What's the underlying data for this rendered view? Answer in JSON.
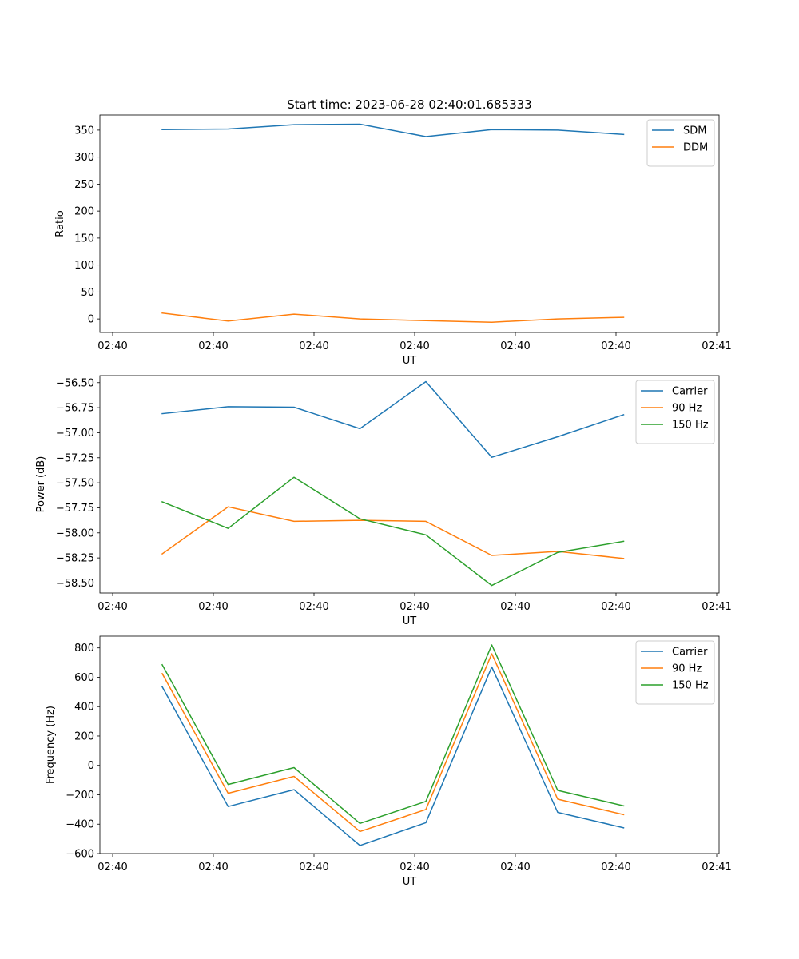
{
  "figure_title": "Start time: 2023-06-28 02:40:01.685333",
  "chart_data": [
    {
      "type": "line",
      "xlabel": "UT",
      "ylabel": "Ratio",
      "x_tick_labels": [
        "02:40",
        "02:40",
        "02:40",
        "02:40",
        "02:40",
        "02:40",
        "02:41"
      ],
      "y_ticks": [
        0,
        50,
        100,
        150,
        200,
        250,
        300,
        350
      ],
      "y_tick_labels": [
        "0",
        "50",
        "100",
        "150",
        "200",
        "250",
        "300",
        "350"
      ],
      "ylim": [
        -25,
        378
      ],
      "legend_position": "upper right",
      "series": [
        {
          "name": "SDM",
          "color": "#1f77b4",
          "values": [
            351,
            352,
            360,
            361,
            338,
            351,
            350,
            342
          ]
        },
        {
          "name": "DDM",
          "color": "#ff7f0e",
          "values": [
            11,
            -4,
            9,
            0,
            -3,
            -6,
            0,
            3
          ]
        }
      ]
    },
    {
      "type": "line",
      "xlabel": "UT",
      "ylabel": "Power (dB)",
      "x_tick_labels": [
        "02:40",
        "02:40",
        "02:40",
        "02:40",
        "02:40",
        "02:40",
        "02:41"
      ],
      "y_ticks": [
        -58.5,
        -58.25,
        -58.0,
        -57.75,
        -57.5,
        -57.25,
        -57.0,
        -56.75,
        -56.5
      ],
      "y_tick_labels": [
        "−58.50",
        "−58.25",
        "−58.00",
        "−57.75",
        "−57.50",
        "−57.25",
        "−57.00",
        "−56.75",
        "−56.50"
      ],
      "ylim": [
        -58.6,
        -56.43
      ],
      "legend_position": "upper right",
      "series": [
        {
          "name": "Carrier",
          "color": "#1f77b4",
          "values": [
            -56.81,
            -56.74,
            -56.745,
            -56.96,
            -56.49,
            -57.245,
            -57.04,
            -56.82
          ]
        },
        {
          "name": "90 Hz",
          "color": "#ff7f0e",
          "values": [
            -58.21,
            -57.74,
            -57.885,
            -57.875,
            -57.885,
            -58.225,
            -58.185,
            -58.255
          ]
        },
        {
          "name": "150 Hz",
          "color": "#2ca02c",
          "values": [
            -57.69,
            -57.955,
            -57.445,
            -57.86,
            -58.02,
            -58.525,
            -58.195,
            -58.085
          ]
        }
      ]
    },
    {
      "type": "line",
      "xlabel": "UT",
      "ylabel": "Frequency (Hz)",
      "x_tick_labels": [
        "02:40",
        "02:40",
        "02:40",
        "02:40",
        "02:40",
        "02:40",
        "02:41"
      ],
      "y_ticks": [
        -600,
        -400,
        -200,
        0,
        200,
        400,
        600,
        800
      ],
      "y_tick_labels": [
        "−600",
        "−400",
        "−200",
        "0",
        "200",
        "400",
        "600",
        "800"
      ],
      "ylim": [
        -600,
        880
      ],
      "legend_position": "upper right",
      "series": [
        {
          "name": "Carrier",
          "color": "#1f77b4",
          "values": [
            535,
            -280,
            -165,
            -545,
            -390,
            670,
            -320,
            -425
          ]
        },
        {
          "name": "90 Hz",
          "color": "#ff7f0e",
          "values": [
            625,
            -190,
            -75,
            -450,
            -300,
            760,
            -230,
            -335
          ]
        },
        {
          "name": "150 Hz",
          "color": "#2ca02c",
          "values": [
            685,
            -130,
            -15,
            -395,
            -245,
            820,
            -170,
            -275
          ]
        }
      ]
    }
  ]
}
